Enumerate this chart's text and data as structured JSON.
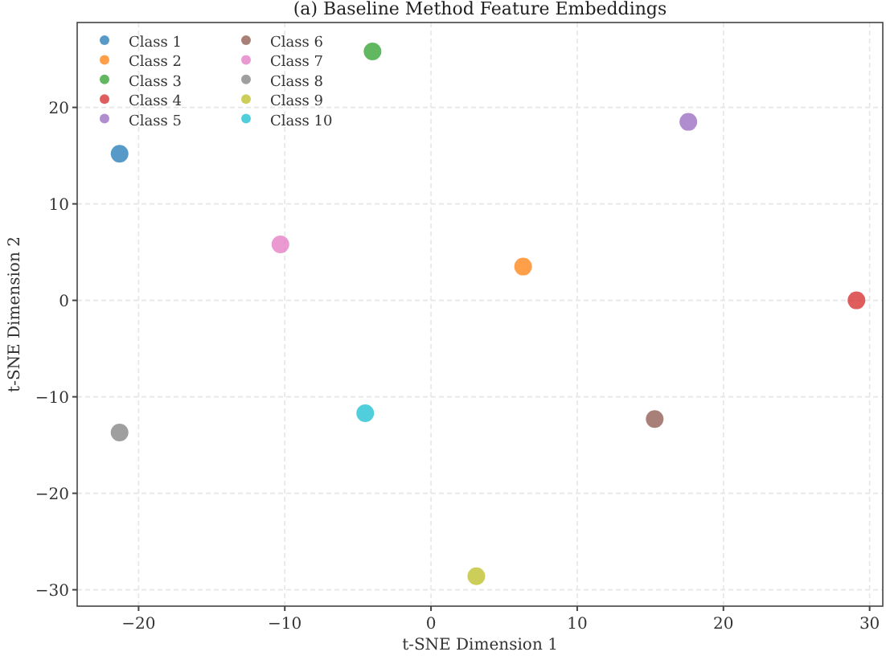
{
  "chart_data": {
    "type": "scatter",
    "title": "(a) Baseline Method Feature Embeddings",
    "xlabel": "t-SNE Dimension 1",
    "ylabel": "t-SNE Dimension 2",
    "xlim": [
      -24.2,
      30.9
    ],
    "ylim": [
      -31.7,
      28.8
    ],
    "xticks": [
      {
        "value": -20,
        "label": "−20"
      },
      {
        "value": -10,
        "label": "−10"
      },
      0,
      10,
      20,
      30
    ],
    "yticks": [
      {
        "value": -30,
        "label": "−30"
      },
      {
        "value": -20,
        "label": "−20"
      },
      {
        "value": -10,
        "label": "−10"
      },
      0,
      10,
      20
    ],
    "grid": true,
    "legend": "top left",
    "marker": "circle",
    "series": [
      {
        "name": "Class 1",
        "color": "#1f77b4",
        "x": [
          -21.3
        ],
        "values": [
          15.2
        ]
      },
      {
        "name": "Class 2",
        "color": "#ff7f0e",
        "x": [
          6.3
        ],
        "values": [
          3.5
        ]
      },
      {
        "name": "Class 3",
        "color": "#2ca02c",
        "x": [
          -4.0
        ],
        "values": [
          25.8
        ]
      },
      {
        "name": "Class 4",
        "color": "#d62728",
        "x": [
          29.1
        ],
        "values": [
          0
        ]
      },
      {
        "name": "Class 5",
        "color": "#9467bd",
        "x": [
          17.6
        ],
        "values": [
          18.5
        ]
      },
      {
        "name": "Class 6",
        "color": "#8c564b",
        "x": [
          15.3
        ],
        "values": [
          -12.3
        ]
      },
      {
        "name": "Class 7",
        "color": "#e377c2",
        "x": [
          -10.3
        ],
        "values": [
          5.8
        ]
      },
      {
        "name": "Class 8",
        "color": "#7f7f7f",
        "x": [
          -21.3
        ],
        "values": [
          -13.7
        ]
      },
      {
        "name": "Class 9",
        "color": "#bcbd22",
        "x": [
          3.1
        ],
        "values": [
          -28.6
        ]
      },
      {
        "name": "Class 10",
        "color": "#17becf",
        "x": [
          -4.5
        ],
        "values": [
          -11.7
        ]
      }
    ]
  }
}
